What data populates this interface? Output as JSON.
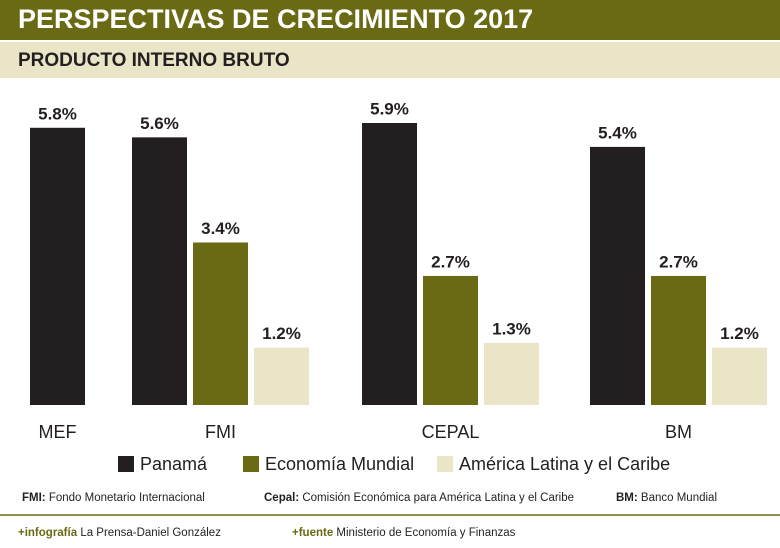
{
  "chart_data": {
    "type": "bar",
    "title": "PERSPECTIVAS DE CRECIMIENTO 2017",
    "subtitle": "PRODUCTO INTERNO BRUTO",
    "categories": [
      "MEF",
      "FMI",
      "CEPAL",
      "BM"
    ],
    "series": [
      {
        "name": "Panamá",
        "color": "#231f20",
        "values": [
          5.8,
          5.6,
          5.9,
          5.4
        ],
        "value_labels": [
          "5.8%",
          "5.6%",
          "5.9%",
          "5.4%"
        ]
      },
      {
        "name": "Economía Mundial",
        "color": "#6b6a14",
        "values": [
          null,
          3.4,
          2.7,
          2.7
        ],
        "value_labels": [
          null,
          "3.4%",
          "2.7%",
          "2.7%"
        ]
      },
      {
        "name": "América Latina y el Caribe",
        "color": "#e9e5c6",
        "values": [
          null,
          1.2,
          1.3,
          1.2
        ],
        "value_labels": [
          null,
          "1.2%",
          "1.3%",
          "1.2%"
        ]
      }
    ],
    "notes": [
      {
        "abbr": "FMI:",
        "text": "Fondo Monetario Internacional"
      },
      {
        "abbr": "Cepal:",
        "text": "Comisión Económica para América Latina y el Caribe"
      },
      {
        "abbr": "BM:",
        "text": "Banco Mundial"
      }
    ],
    "credits": [
      {
        "label": "+infografía",
        "text": "La Prensa-Daniel González"
      },
      {
        "label": "+fuente",
        "text": "Ministerio de Economía y Finanzas"
      }
    ]
  }
}
